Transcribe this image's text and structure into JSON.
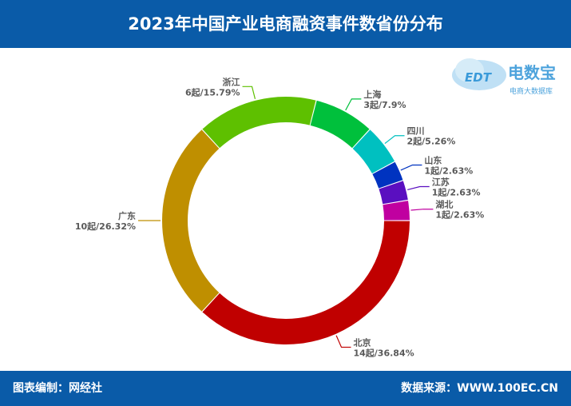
{
  "header": {
    "title": "2023年中国产业电商融资事件数省份分布"
  },
  "footer": {
    "editor": "图表编制：网经社",
    "source": "数据来源：WWW.100EC.CN"
  },
  "logo": {
    "brand_text": "电数宝",
    "brand_subtitle": "电商大数据库",
    "mark_text": "EDT"
  },
  "colors": {
    "header_bg": "#0a5ba8",
    "label_text": "#595959"
  },
  "chart_data": {
    "type": "pie",
    "subtype": "donut",
    "title": "2023年中国产业电商融资事件数省份分布",
    "start_angle_deg": 90,
    "direction": "clockwise",
    "slices": [
      {
        "name": "北京",
        "value": 14,
        "percent": "36.84%",
        "label_line2": "14起/36.84%",
        "color": "#c00000"
      },
      {
        "name": "广东",
        "value": 10,
        "percent": "26.32%",
        "label_line2": "10起/26.32%",
        "color": "#bf8f00"
      },
      {
        "name": "浙江",
        "value": 6,
        "percent": "15.79%",
        "label_line2": "6起/15.79%",
        "color": "#5ec000"
      },
      {
        "name": "上海",
        "value": 3,
        "percent": "7.9%",
        "label_line2": "3起/7.9%",
        "color": "#00c03c"
      },
      {
        "name": "四川",
        "value": 2,
        "percent": "5.26%",
        "label_line2": "2起/5.26%",
        "color": "#00c0c0"
      },
      {
        "name": "山东",
        "value": 1,
        "percent": "2.63%",
        "label_line2": "1起/2.63%",
        "color": "#0033c0"
      },
      {
        "name": "江苏",
        "value": 1,
        "percent": "2.63%",
        "label_line2": "1起/2.63%",
        "color": "#5a0fc0"
      },
      {
        "name": "湖北",
        "value": 1,
        "percent": "2.63%",
        "label_line2": "1起/2.63%",
        "color": "#c000a0"
      }
    ]
  }
}
